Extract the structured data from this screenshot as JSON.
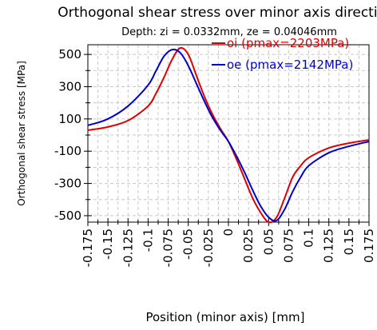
{
  "chart_data": {
    "type": "line",
    "title": "Orthogonal shear stress over minor axis direction",
    "subtitle": "Depth: zi = 0.0332mm, ze = 0.04046mm",
    "xlabel": "Position (minor axis) [mm]",
    "ylabel": "Orthogonal shear stress [MPa]",
    "xlim": [
      -0.175,
      0.175
    ],
    "ylim": [
      -540,
      560
    ],
    "x_ticks": [
      "-0.175",
      "-0.15",
      "-0.125",
      "-0.1",
      "-0.075",
      "-0.05",
      "-0.025",
      "0",
      "0.025",
      "0.05",
      "0.075",
      "0.1",
      "0.125",
      "0.15",
      "0.175"
    ],
    "y_ticks": [
      "500",
      "300",
      "100",
      "-100",
      "-300",
      "-500"
    ],
    "grid": true,
    "legend_position": "top-right",
    "series": [
      {
        "name": "oi (pmax=2203MPa)",
        "color": "#e00000",
        "x": [
          -0.175,
          -0.15,
          -0.125,
          -0.1,
          -0.09,
          -0.08,
          -0.07,
          -0.06,
          -0.05,
          -0.04,
          -0.03,
          -0.02,
          -0.01,
          0,
          0.01,
          0.02,
          0.03,
          0.04,
          0.05,
          0.06,
          0.07,
          0.08,
          0.09,
          0.1,
          0.125,
          0.15,
          0.175
        ],
        "y": [
          30,
          50,
          90,
          180,
          260,
          360,
          470,
          540,
          500,
          370,
          240,
          130,
          40,
          -40,
          -150,
          -270,
          -390,
          -480,
          -540,
          -510,
          -390,
          -260,
          -190,
          -140,
          -80,
          -50,
          -30
        ]
      },
      {
        "name": "oe (pmax=2142MPa)",
        "color": "#0000cc",
        "x": [
          -0.175,
          -0.15,
          -0.125,
          -0.1,
          -0.09,
          -0.08,
          -0.07,
          -0.06,
          -0.05,
          -0.04,
          -0.03,
          -0.02,
          -0.01,
          0,
          0.01,
          0.02,
          0.03,
          0.04,
          0.05,
          0.06,
          0.07,
          0.08,
          0.09,
          0.1,
          0.125,
          0.15,
          0.175
        ],
        "y": [
          60,
          100,
          180,
          310,
          400,
          490,
          530,
          510,
          430,
          320,
          210,
          110,
          30,
          -40,
          -130,
          -230,
          -340,
          -440,
          -510,
          -530,
          -460,
          -350,
          -260,
          -190,
          -110,
          -70,
          -40
        ]
      }
    ]
  }
}
